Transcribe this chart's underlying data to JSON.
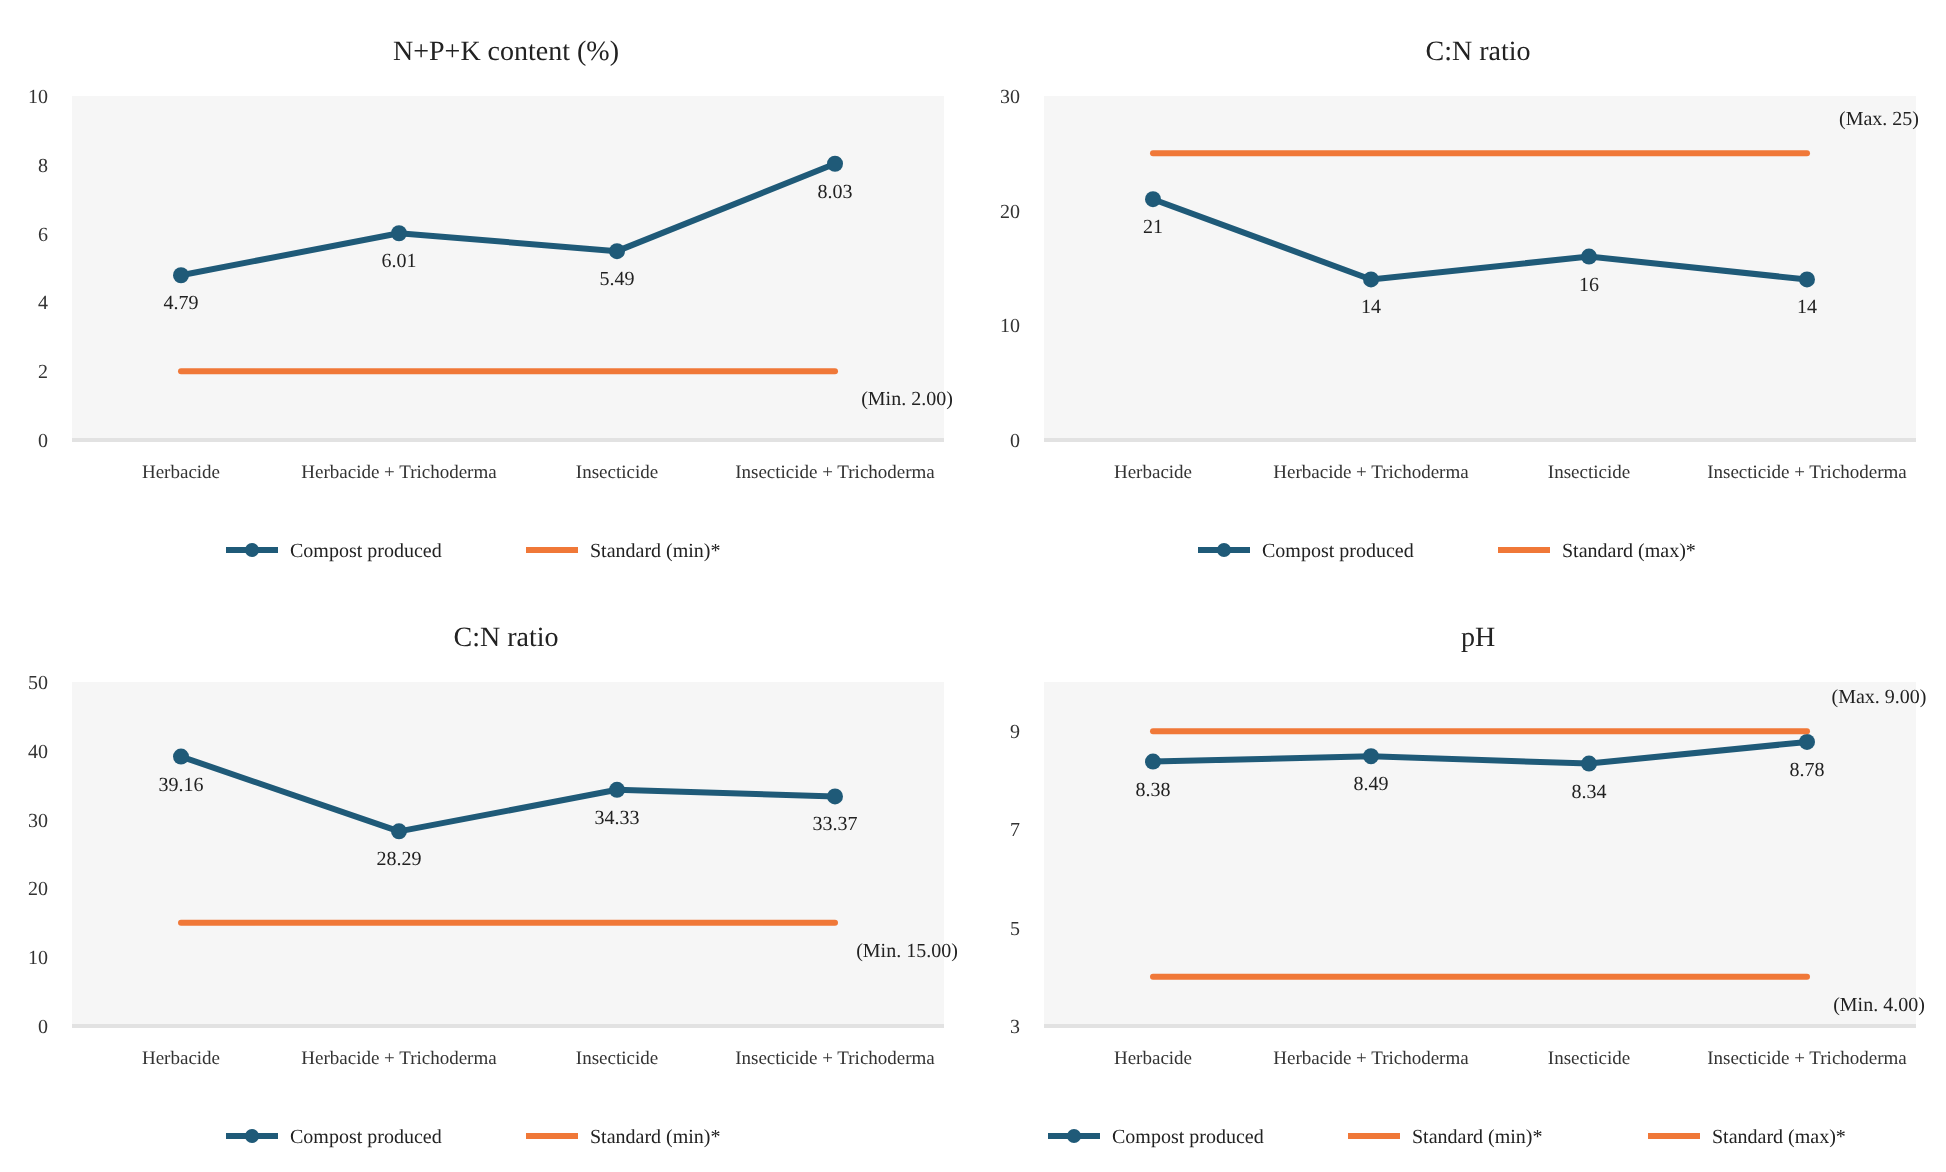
{
  "chart_data": [
    {
      "type": "line",
      "title": "N+P+K content (%)",
      "categories": [
        "Herbacide",
        "Herbacide + Trichoderma",
        "Insecticide",
        "Insecticide + Trichoderma"
      ],
      "ylim": [
        0,
        10
      ],
      "yticks": [
        0,
        2,
        4,
        6,
        8,
        10
      ],
      "legend": "bottom",
      "series": [
        {
          "name": "Compost produced",
          "color": "#1f5a78",
          "marker": "circle",
          "values": [
            4.79,
            6.01,
            5.49,
            8.03
          ],
          "value_labels": [
            "4.79",
            "6.01",
            "5.49",
            "8.03"
          ]
        },
        {
          "name": "Standard (min)*",
          "color": "#f07838",
          "marker": "none",
          "values": [
            2,
            2,
            2,
            2
          ]
        }
      ],
      "annotations": [
        {
          "text": "(Min. 2.00)",
          "x": "Insecticide + Trichoderma",
          "y": 2
        }
      ]
    },
    {
      "type": "line",
      "title": "C:N ratio",
      "categories": [
        "Herbacide",
        "Herbacide + Trichoderma",
        "Insecticide",
        "Insecticide + Trichoderma"
      ],
      "ylim": [
        0,
        30
      ],
      "yticks": [
        0,
        10,
        20,
        30
      ],
      "legend": "bottom",
      "series": [
        {
          "name": "Compost produced",
          "color": "#1f5a78",
          "marker": "circle",
          "values": [
            21,
            14,
            16,
            14
          ],
          "value_labels": [
            "21",
            "14",
            "16",
            "14"
          ]
        },
        {
          "name": "Standard (max)*",
          "color": "#f07838",
          "marker": "none",
          "values": [
            25,
            25,
            25,
            25
          ]
        }
      ],
      "annotations": [
        {
          "text": "(Max. 25)",
          "x": "Insecticide + Trichoderma",
          "y": 25
        }
      ]
    },
    {
      "type": "line",
      "title": "C:N ratio",
      "categories": [
        "Herbacide",
        "Herbacide + Trichoderma",
        "Insecticide",
        "Insecticide + Trichoderma"
      ],
      "ylim": [
        0,
        50
      ],
      "yticks": [
        0,
        10,
        20,
        30,
        40,
        50
      ],
      "legend": "bottom",
      "series": [
        {
          "name": "Compost produced",
          "color": "#1f5a78",
          "marker": "circle",
          "values": [
            39.16,
            28.29,
            34.33,
            33.37
          ],
          "value_labels": [
            "39.16",
            "28.29",
            "34.33",
            "33.37"
          ]
        },
        {
          "name": "Standard (min)*",
          "color": "#f07838",
          "marker": "none",
          "values": [
            15,
            15,
            15,
            15
          ]
        }
      ],
      "annotations": [
        {
          "text": "(Min. 15.00)",
          "x": "Insecticide + Trichoderma",
          "y": 15
        }
      ]
    },
    {
      "type": "line",
      "title": "pH",
      "categories": [
        "Herbacide",
        "Herbacide + Trichoderma",
        "Insecticide",
        "Insecticide + Trichoderma"
      ],
      "ylim": [
        3,
        10
      ],
      "yticks": [
        3,
        5,
        7,
        9
      ],
      "legend": "bottom",
      "series": [
        {
          "name": "Compost produced",
          "color": "#1f5a78",
          "marker": "circle",
          "values": [
            8.38,
            8.49,
            8.34,
            8.78
          ],
          "value_labels": [
            "8.38",
            "8.49",
            "8.34",
            "8.78"
          ]
        },
        {
          "name": "Standard (min)*",
          "color": "#f07838",
          "marker": "none",
          "values": [
            4,
            4,
            4,
            4
          ]
        },
        {
          "name": "Standard (max)*",
          "color": "#f07838",
          "marker": "none",
          "values": [
            9,
            9,
            9,
            9
          ]
        }
      ],
      "annotations": [
        {
          "text": "(Max. 9.00)",
          "x": "Insecticide + Trichoderma",
          "y": 9
        },
        {
          "text": "(Min. 4.00)",
          "x": "Insecticide + Trichoderma",
          "y": 4
        }
      ]
    }
  ]
}
